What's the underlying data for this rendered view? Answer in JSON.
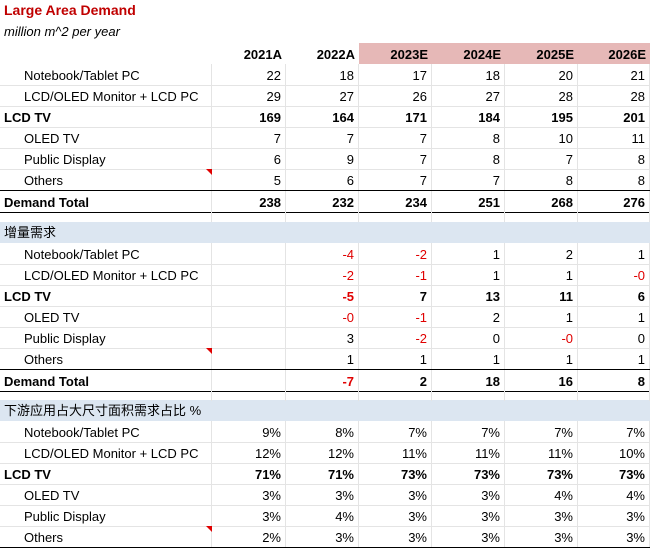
{
  "title": "Large Area Demand",
  "subtitle": "million m^2 per year",
  "years": [
    {
      "label": "2021A",
      "estimate": false
    },
    {
      "label": "2022A",
      "estimate": false
    },
    {
      "label": "2023E",
      "estimate": true
    },
    {
      "label": "2024E",
      "estimate": true
    },
    {
      "label": "2025E",
      "estimate": true
    },
    {
      "label": "2026E",
      "estimate": true
    }
  ],
  "sections": [
    {
      "name": "demand",
      "heading": "",
      "rows": [
        {
          "label": "Notebook/Tablet PC",
          "bold": false,
          "values": [
            "22",
            "18",
            "17",
            "18",
            "20",
            "21"
          ]
        },
        {
          "label": "LCD/OLED Monitor + LCD PC",
          "bold": false,
          "values": [
            "29",
            "27",
            "26",
            "27",
            "28",
            "28"
          ]
        },
        {
          "label": "LCD TV",
          "bold": true,
          "values": [
            "169",
            "164",
            "171",
            "184",
            "195",
            "201"
          ]
        },
        {
          "label": "OLED TV",
          "bold": false,
          "values": [
            "7",
            "7",
            "7",
            "8",
            "10",
            "11"
          ]
        },
        {
          "label": "Public Display",
          "bold": false,
          "values": [
            "6",
            "9",
            "7",
            "8",
            "7",
            "8"
          ]
        },
        {
          "label": "Others",
          "bold": false,
          "comment": true,
          "values": [
            "5",
            "6",
            "7",
            "7",
            "8",
            "8"
          ]
        }
      ],
      "total": {
        "label": "Demand Total",
        "values": [
          "238",
          "232",
          "234",
          "251",
          "268",
          "276"
        ]
      }
    },
    {
      "name": "incremental",
      "heading": "增量需求",
      "rows": [
        {
          "label": "Notebook/Tablet PC",
          "bold": false,
          "values": [
            "",
            "-4",
            "-2",
            "1",
            "2",
            "1"
          ]
        },
        {
          "label": "LCD/OLED Monitor + LCD PC",
          "bold": false,
          "values": [
            "",
            "-2",
            "-1",
            "1",
            "1",
            "-0"
          ]
        },
        {
          "label": "LCD TV",
          "bold": true,
          "values": [
            "",
            "-5",
            "7",
            "13",
            "11",
            "6"
          ]
        },
        {
          "label": "OLED TV",
          "bold": false,
          "values": [
            "",
            "-0",
            "-1",
            "2",
            "1",
            "1"
          ]
        },
        {
          "label": "Public Display",
          "bold": false,
          "values": [
            "",
            "3",
            "-2",
            "0",
            "-0",
            "0"
          ]
        },
        {
          "label": "Others",
          "bold": false,
          "comment": true,
          "values": [
            "",
            "1",
            "1",
            "1",
            "1",
            "1"
          ]
        }
      ],
      "total": {
        "label": "Demand Total",
        "values": [
          "",
          "-7",
          "2",
          "18",
          "16",
          "8"
        ]
      }
    },
    {
      "name": "share",
      "heading": "下游应用占大尺寸面积需求占比 %",
      "rows": [
        {
          "label": "Notebook/Tablet PC",
          "bold": false,
          "values": [
            "9%",
            "8%",
            "7%",
            "7%",
            "7%",
            "7%"
          ]
        },
        {
          "label": "LCD/OLED Monitor + LCD PC",
          "bold": false,
          "values": [
            "12%",
            "12%",
            "11%",
            "11%",
            "11%",
            "10%"
          ]
        },
        {
          "label": "LCD TV",
          "bold": true,
          "values": [
            "71%",
            "71%",
            "73%",
            "73%",
            "73%",
            "73%"
          ]
        },
        {
          "label": "OLED TV",
          "bold": false,
          "values": [
            "3%",
            "3%",
            "3%",
            "3%",
            "4%",
            "4%"
          ]
        },
        {
          "label": "Public Display",
          "bold": false,
          "values": [
            "3%",
            "4%",
            "3%",
            "3%",
            "3%",
            "3%"
          ]
        },
        {
          "label": "Others",
          "bold": false,
          "comment": true,
          "values": [
            "2%",
            "3%",
            "3%",
            "3%",
            "3%",
            "3%"
          ]
        }
      ]
    }
  ],
  "colors": {
    "negative": "#e00000",
    "title": "#c00000",
    "estimate_header": "#e6b8b7",
    "section_band": "#dce6f1"
  }
}
